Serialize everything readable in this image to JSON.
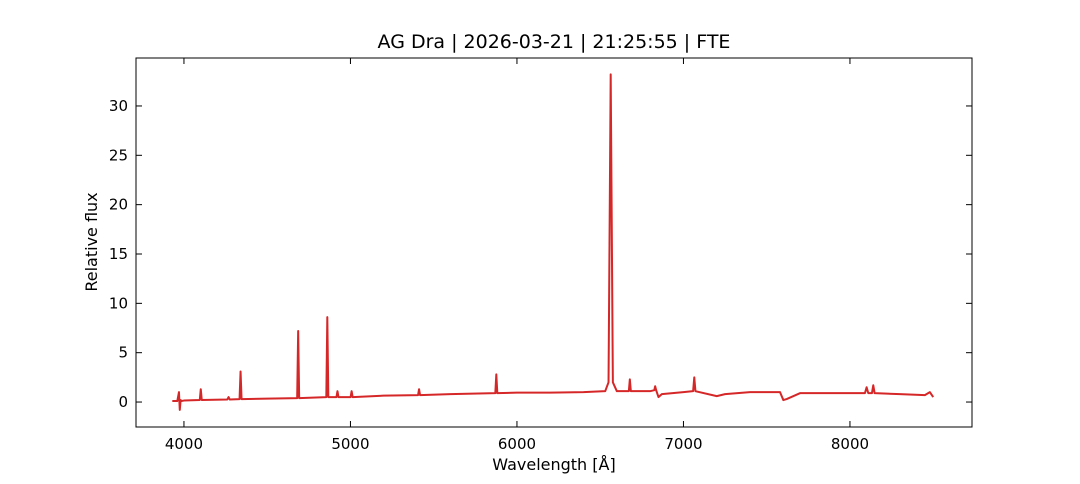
{
  "chart_data": {
    "type": "line",
    "title": "AG Dra | 2026-03-21 | 21:25:55 | FTE",
    "x_label": "Wavelength [Å]",
    "y_label": "Relative flux",
    "x": [
      3930,
      3960,
      3970,
      3975,
      3980,
      3985,
      4000,
      4095,
      4101,
      4107,
      4260,
      4268,
      4275,
      4334,
      4340,
      4346,
      4500,
      4680,
      4686,
      4692,
      4855,
      4861,
      4867,
      4916,
      4922,
      4928,
      5001,
      5007,
      5013,
      5200,
      5406,
      5412,
      5418,
      5600,
      5870,
      5876,
      5882,
      6000,
      6200,
      6400,
      6530,
      6550,
      6563,
      6576,
      6600,
      6672,
      6678,
      6684,
      6800,
      6825,
      6830,
      6836,
      6850,
      6870,
      7000,
      7058,
      7065,
      7072,
      7200,
      7250,
      7400,
      7580,
      7600,
      7620,
      7700,
      7800,
      8000,
      8090,
      8100,
      8110,
      8132,
      8140,
      8148,
      8300,
      8450,
      8480,
      8500
    ],
    "series": [
      {
        "color": "#d62728",
        "values": [
          0.1,
          0.1,
          1.0,
          -0.8,
          0.2,
          0.1,
          0.15,
          0.2,
          1.3,
          0.2,
          0.25,
          0.5,
          0.25,
          0.3,
          3.1,
          0.3,
          0.35,
          0.4,
          7.2,
          0.4,
          0.5,
          8.6,
          0.5,
          0.5,
          1.1,
          0.5,
          0.5,
          1.1,
          0.5,
          0.65,
          0.7,
          1.3,
          0.7,
          0.8,
          0.9,
          2.8,
          0.9,
          0.95,
          0.95,
          1.0,
          1.1,
          2.0,
          33.2,
          2.0,
          1.1,
          1.1,
          2.3,
          1.1,
          1.1,
          1.2,
          1.6,
          1.2,
          0.5,
          0.8,
          1.0,
          1.1,
          2.5,
          1.1,
          0.6,
          0.8,
          1.0,
          1.0,
          0.2,
          0.3,
          0.9,
          0.9,
          0.9,
          0.9,
          1.5,
          0.9,
          0.9,
          1.7,
          0.9,
          0.8,
          0.7,
          1.0,
          0.5
        ]
      }
    ],
    "xlim": [
      3712,
      8733
    ],
    "ylim": [
      -2.53,
      34.86
    ],
    "xticks": [
      4000,
      5000,
      6000,
      7000,
      8000
    ],
    "yticks": [
      0,
      5,
      10,
      15,
      20,
      25,
      30
    ]
  }
}
